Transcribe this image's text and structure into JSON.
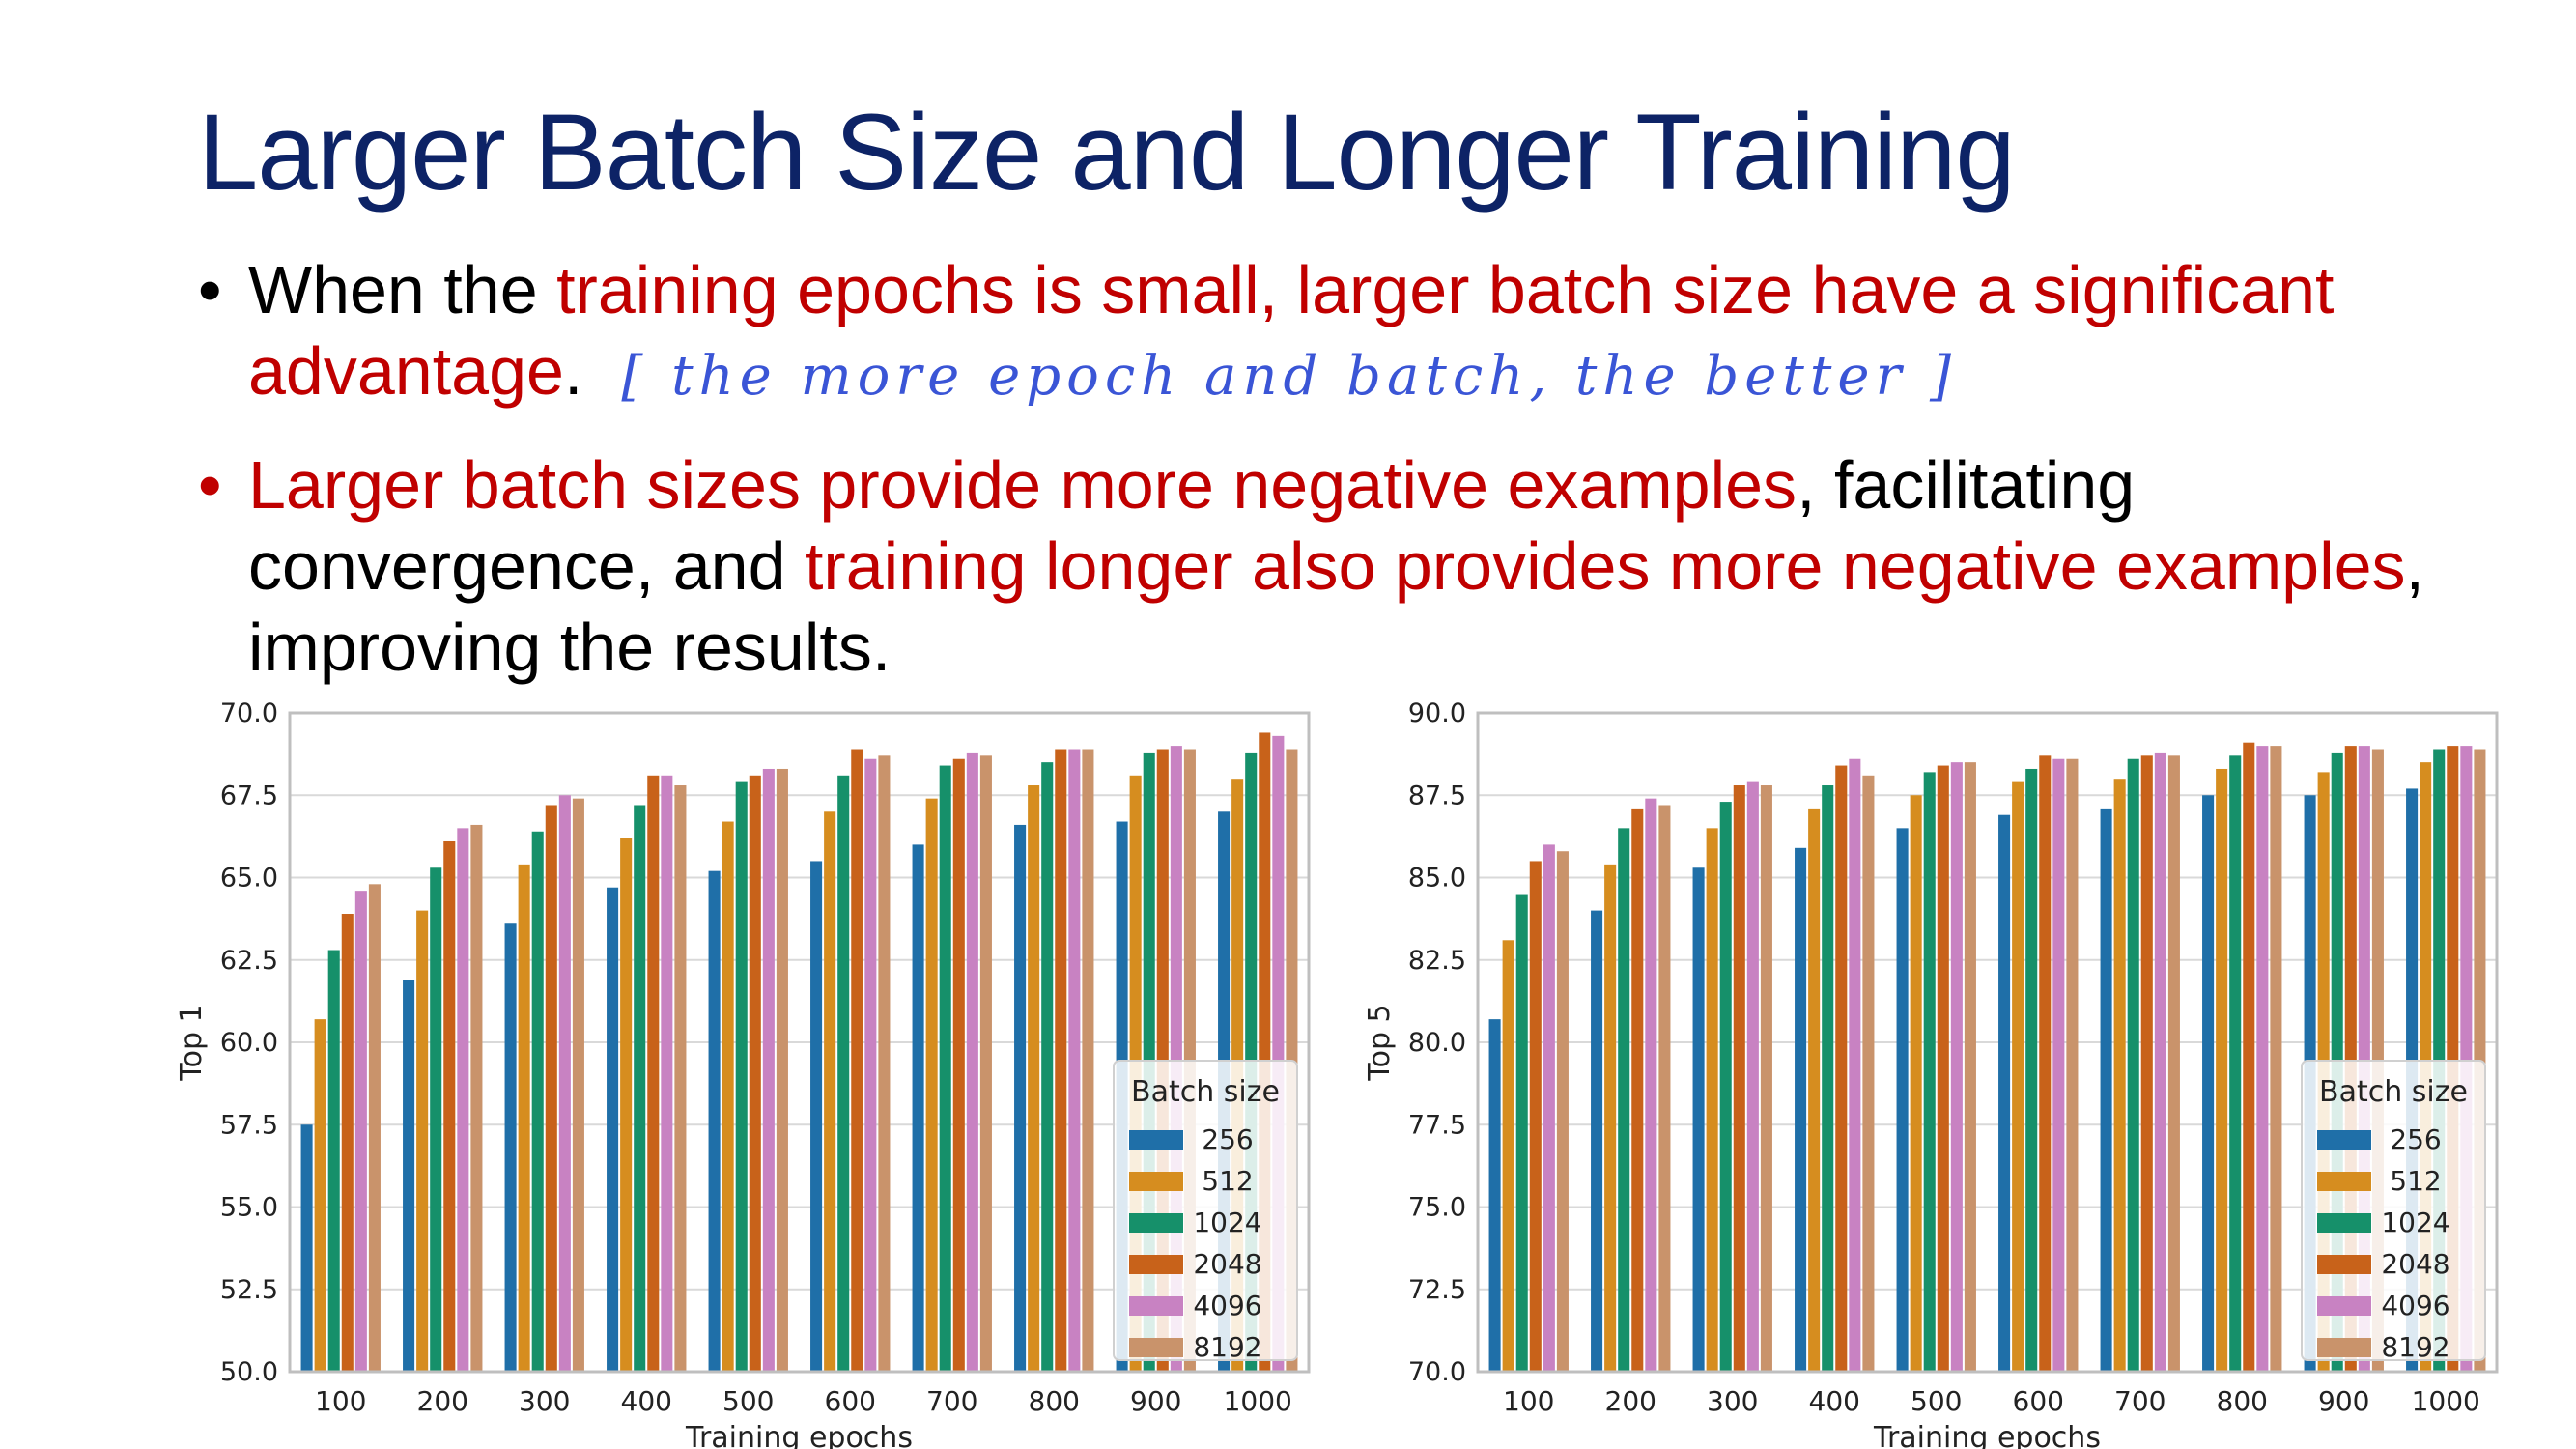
{
  "slide": {
    "title": "Larger Batch Size and Longer Training",
    "bullet1": {
      "t1": "When the ",
      "t2": "training epochs is small, larger batch size have a significant advantage",
      "t3": ".",
      "handwriting": "[ the more epoch and batch, the better ]"
    },
    "bullet2": {
      "t1": "Larger batch sizes provide more negative examples",
      "t2": ", facilitating convergence, and ",
      "t3": "training longer also provides more negative examples",
      "t4": ", improving the results."
    },
    "bullet_glyph": "•",
    "colors": {
      "title": "#0d2366",
      "highlight": "#c00000",
      "handwriting": "#3a55d6"
    }
  },
  "chart_data": [
    {
      "type": "bar",
      "xlabel": "Training epochs",
      "ylabel": "Top 1",
      "ylim": [
        50.0,
        70.0
      ],
      "yticks": [
        "50.0",
        "52.5",
        "55.0",
        "57.5",
        "60.0",
        "62.5",
        "65.0",
        "67.5",
        "70.0"
      ],
      "categories": [
        "100",
        "200",
        "300",
        "400",
        "500",
        "600",
        "700",
        "800",
        "900",
        "1000"
      ],
      "grid": "horizontal",
      "legend": {
        "title": "Batch size",
        "placement": "lower-right"
      },
      "series": [
        {
          "name": "256",
          "color": "#1f6fa8",
          "values": [
            57.5,
            61.9,
            63.6,
            64.7,
            65.2,
            65.5,
            66.0,
            66.6,
            66.7,
            67.0
          ]
        },
        {
          "name": "512",
          "color": "#d68d1f",
          "values": [
            60.7,
            64.0,
            65.4,
            66.2,
            66.7,
            67.0,
            67.4,
            67.8,
            68.1,
            68.0
          ]
        },
        {
          "name": "1024",
          "color": "#16906a",
          "values": [
            62.8,
            65.3,
            66.4,
            67.2,
            67.9,
            68.1,
            68.4,
            68.5,
            68.8,
            68.8
          ]
        },
        {
          "name": "2048",
          "color": "#c8621a",
          "values": [
            63.9,
            66.1,
            67.2,
            68.1,
            68.1,
            68.9,
            68.6,
            68.9,
            68.9,
            69.4
          ]
        },
        {
          "name": "4096",
          "color": "#c882c2",
          "values": [
            64.6,
            66.5,
            67.5,
            68.1,
            68.3,
            68.6,
            68.8,
            68.9,
            69.0,
            69.3
          ]
        },
        {
          "name": "8192",
          "color": "#c9936b",
          "values": [
            64.8,
            66.6,
            67.4,
            67.8,
            68.3,
            68.7,
            68.7,
            68.9,
            68.9,
            68.9
          ]
        }
      ]
    },
    {
      "type": "bar",
      "xlabel": "Training epochs",
      "ylabel": "Top 5",
      "ylim": [
        70.0,
        90.0
      ],
      "yticks": [
        "70.0",
        "72.5",
        "75.0",
        "77.5",
        "80.0",
        "82.5",
        "85.0",
        "87.5",
        "90.0"
      ],
      "categories": [
        "100",
        "200",
        "300",
        "400",
        "500",
        "600",
        "700",
        "800",
        "900",
        "1000"
      ],
      "grid": "horizontal",
      "legend": {
        "title": "Batch size",
        "placement": "lower-right"
      },
      "series": [
        {
          "name": "256",
          "color": "#1f6fa8",
          "values": [
            80.7,
            84.0,
            85.3,
            85.9,
            86.5,
            86.9,
            87.1,
            87.5,
            87.5,
            87.7
          ]
        },
        {
          "name": "512",
          "color": "#d68d1f",
          "values": [
            83.1,
            85.4,
            86.5,
            87.1,
            87.5,
            87.9,
            88.0,
            88.3,
            88.2,
            88.5
          ]
        },
        {
          "name": "1024",
          "color": "#16906a",
          "values": [
            84.5,
            86.5,
            87.3,
            87.8,
            88.2,
            88.3,
            88.6,
            88.7,
            88.8,
            88.9
          ]
        },
        {
          "name": "2048",
          "color": "#c8621a",
          "values": [
            85.5,
            87.1,
            87.8,
            88.4,
            88.4,
            88.7,
            88.7,
            89.1,
            89.0,
            89.0
          ]
        },
        {
          "name": "4096",
          "color": "#c882c2",
          "values": [
            86.0,
            87.4,
            87.9,
            88.6,
            88.5,
            88.6,
            88.8,
            89.0,
            89.0,
            89.0
          ]
        },
        {
          "name": "8192",
          "color": "#c9936b",
          "values": [
            85.8,
            87.2,
            87.8,
            88.1,
            88.5,
            88.6,
            88.7,
            89.0,
            88.9,
            88.9
          ]
        }
      ]
    }
  ]
}
